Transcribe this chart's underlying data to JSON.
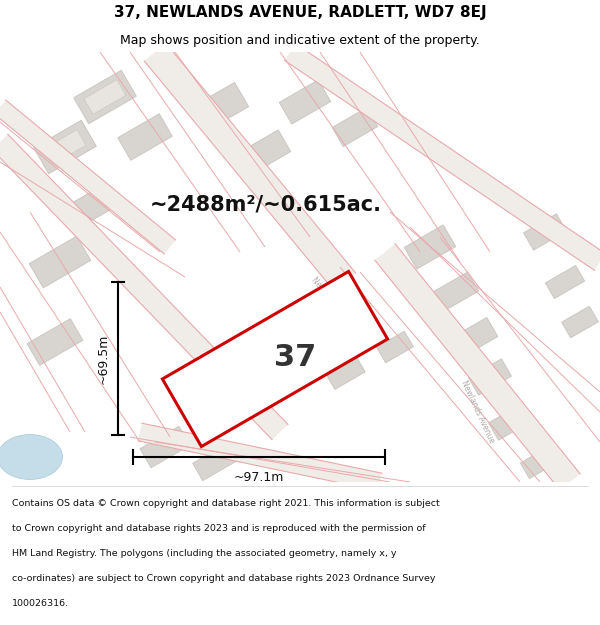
{
  "title": "37, NEWLANDS AVENUE, RADLETT, WD7 8EJ",
  "subtitle": "Map shows position and indicative extent of the property.",
  "area_text": "~2488m²/~0.615ac.",
  "number_label": "37",
  "dim_width": "~97.1m",
  "dim_height": "~69.5m",
  "title_fontsize": 11,
  "subtitle_fontsize": 9,
  "footer_text": "Contains OS data © Crown copyright and database right 2021. This information is subject to Crown copyright and database rights 2023 and is reproduced with the permission of HM Land Registry. The polygons (including the associated geometry, namely x, y co-ordinates) are subject to Crown copyright and database rights 2023 Ordnance Survey 100026316.",
  "map_bg": "#f7f4f2",
  "road_outline_color": "#e8aaaa",
  "building_fill": "#d8d4d0",
  "building_edge": "#c8c4c0",
  "building_inner_fill": "#e8e4e0",
  "highlight_color": "#cc0000",
  "dim_color": "#111111",
  "area_color": "#111111",
  "street_label_color": "#b0a8a8",
  "pond_color": "#c5dde8",
  "pond_edge": "#a8c8d8"
}
